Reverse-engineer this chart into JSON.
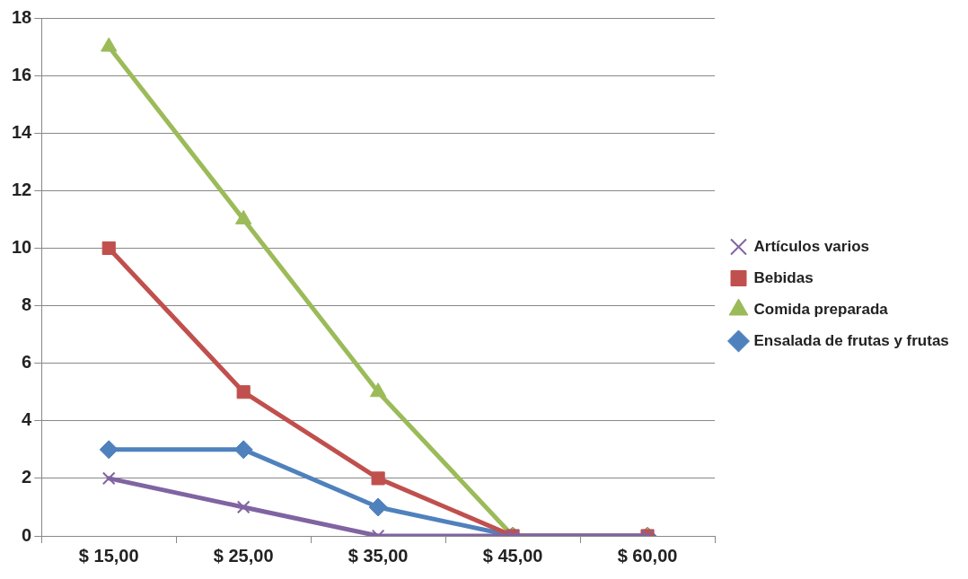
{
  "chart_data": {
    "type": "line",
    "categories": [
      "$ 15,00",
      "$ 25,00",
      "$ 35,00",
      "$ 45,00",
      "$ 60,00"
    ],
    "series": [
      {
        "name": "Artículos varios",
        "color": "#8064a2",
        "marker": "cross",
        "values": [
          2,
          1,
          0,
          0,
          0
        ]
      },
      {
        "name": "Bebidas",
        "color": "#c0504d",
        "marker": "square",
        "values": [
          10,
          5,
          2,
          0,
          0
        ]
      },
      {
        "name": "Comida preparada",
        "color": "#9bbb59",
        "marker": "triangle",
        "values": [
          17,
          11,
          5,
          0,
          0
        ]
      },
      {
        "name": "Ensalada de frutas y frutas",
        "color": "#4f81bd",
        "marker": "diamond",
        "values": [
          3,
          3,
          1,
          0,
          0
        ]
      }
    ],
    "ylim": [
      0,
      18
    ],
    "yticks": [
      0,
      2,
      4,
      6,
      8,
      10,
      12,
      14,
      16,
      18
    ],
    "grid": "y",
    "legend": "right"
  }
}
